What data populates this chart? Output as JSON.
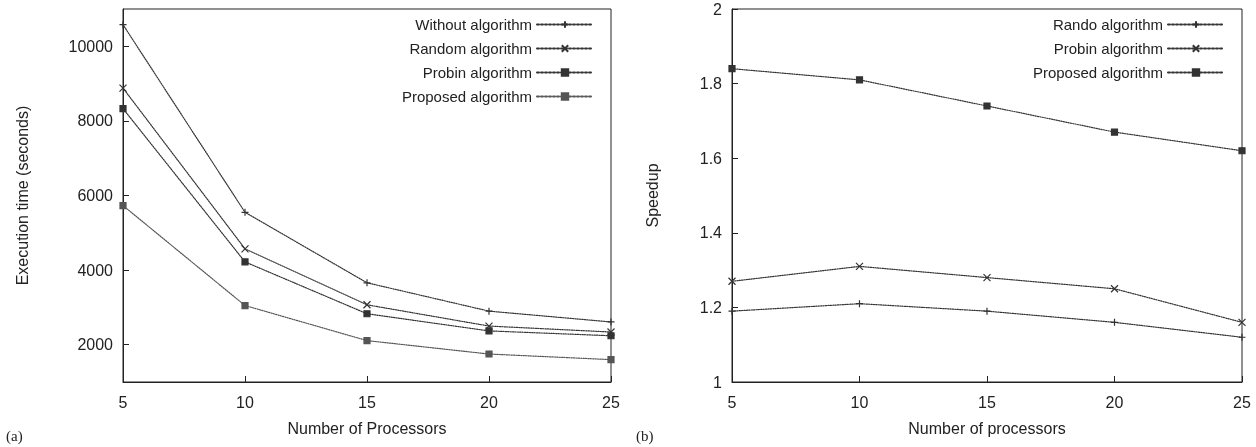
{
  "chart_data": [
    {
      "type": "line",
      "xlabel": "Number of Processors",
      "ylabel": "Execution time (seconds)",
      "x": [
        5,
        10,
        15,
        20,
        25
      ],
      "xlim": [
        5,
        25
      ],
      "xticks": [
        5,
        10,
        15,
        20,
        25
      ],
      "ylim": [
        1000,
        11000
      ],
      "yticks": [
        2000,
        4000,
        6000,
        8000,
        10000
      ],
      "grid": false,
      "legend": "top right",
      "line_style": "dotted",
      "annotations": [
        "(a)"
      ],
      "series": [
        {
          "name": "Without algorithm",
          "color": "#333333",
          "marker": "plus",
          "values": [
            10580,
            5550,
            3660,
            2900,
            2610
          ]
        },
        {
          "name": "Random algorithm",
          "color": "#333333",
          "marker": "cross",
          "values": [
            8880,
            4570,
            3070,
            2500,
            2340
          ]
        },
        {
          "name": "Probin algorithm",
          "color": "#333333",
          "marker": "square",
          "values": [
            8330,
            4220,
            2830,
            2370,
            2240
          ]
        },
        {
          "name": "Proposed algorithm",
          "color": "#555555",
          "marker": "square",
          "values": [
            5730,
            3050,
            2110,
            1750,
            1600
          ]
        }
      ]
    },
    {
      "type": "line",
      "xlabel": "Number of processors",
      "ylabel": "Speedup",
      "x": [
        5,
        10,
        15,
        20,
        25
      ],
      "xlim": [
        5,
        25
      ],
      "xticks": [
        5,
        10,
        15,
        20,
        25
      ],
      "ylim": [
        1,
        2
      ],
      "yticks": [
        1,
        1.2,
        1.4,
        1.6,
        1.8,
        2
      ],
      "grid": false,
      "legend": "top right",
      "line_style": "dotted",
      "annotations": [
        "(b)"
      ],
      "series": [
        {
          "name": "Rando algorithm",
          "color": "#333333",
          "marker": "plus",
          "values": [
            1.19,
            1.21,
            1.19,
            1.16,
            1.12
          ]
        },
        {
          "name": "Probin algorithm",
          "color": "#333333",
          "marker": "cross",
          "values": [
            1.27,
            1.31,
            1.28,
            1.25,
            1.16
          ]
        },
        {
          "name": "Proposed algorithm",
          "color": "#333333",
          "marker": "square",
          "values": [
            1.84,
            1.81,
            1.74,
            1.67,
            1.62
          ]
        }
      ]
    }
  ]
}
